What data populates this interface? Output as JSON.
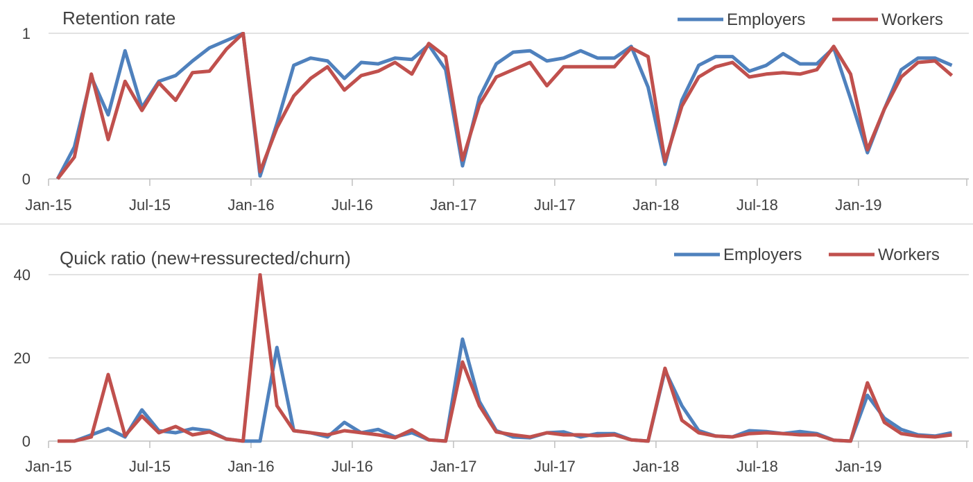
{
  "chart_data": [
    {
      "type": "line",
      "title": "Retention rate",
      "ylim": [
        0,
        1
      ],
      "yticks": [
        "0",
        "1"
      ],
      "xtick_labels": [
        "Jan-15",
        "Jul-15",
        "Jan-16",
        "Jul-16",
        "Jan-17",
        "Jul-17",
        "Jan-18",
        "Jul-18",
        "Jan-19"
      ],
      "legend_position": "top-right",
      "grid": true,
      "x": [
        "Jan-15",
        "Feb-15",
        "Mar-15",
        "Apr-15",
        "May-15",
        "Jun-15",
        "Jul-15",
        "Aug-15",
        "Sep-15",
        "Oct-15",
        "Nov-15",
        "Dec-15",
        "Jan-16",
        "Feb-16",
        "Mar-16",
        "Apr-16",
        "May-16",
        "Jun-16",
        "Jul-16",
        "Aug-16",
        "Sep-16",
        "Oct-16",
        "Nov-16",
        "Dec-16",
        "Jan-17",
        "Feb-17",
        "Mar-17",
        "Apr-17",
        "May-17",
        "Jun-17",
        "Jul-17",
        "Aug-17",
        "Sep-17",
        "Oct-17",
        "Nov-17",
        "Dec-17",
        "Jan-18",
        "Feb-18",
        "Mar-18",
        "Apr-18",
        "May-18",
        "Jun-18",
        "Jul-18",
        "Aug-18",
        "Sep-18",
        "Oct-18",
        "Nov-18",
        "Dec-18",
        "Jan-19",
        "Feb-19",
        "Mar-19",
        "Apr-19",
        "May-19",
        "Jun-19"
      ],
      "series": [
        {
          "name": "Employers",
          "color": "#4f81bd",
          "values": [
            0.0,
            0.22,
            0.7,
            0.44,
            0.88,
            0.49,
            0.67,
            0.71,
            0.81,
            0.9,
            0.95,
            1.0,
            0.02,
            0.38,
            0.78,
            0.83,
            0.81,
            0.69,
            0.8,
            0.79,
            0.83,
            0.82,
            0.92,
            0.75,
            0.09,
            0.56,
            0.79,
            0.87,
            0.88,
            0.81,
            0.83,
            0.88,
            0.83,
            0.83,
            0.91,
            0.63,
            0.1,
            0.54,
            0.78,
            0.84,
            0.84,
            0.74,
            0.78,
            0.86,
            0.79,
            0.79,
            0.9,
            0.55,
            0.18,
            0.48,
            0.75,
            0.83,
            0.83,
            0.78
          ]
        },
        {
          "name": "Workers",
          "color": "#c0504d",
          "values": [
            0.0,
            0.15,
            0.72,
            0.27,
            0.67,
            0.47,
            0.66,
            0.54,
            0.73,
            0.74,
            0.89,
            1.0,
            0.05,
            0.35,
            0.57,
            0.69,
            0.77,
            0.61,
            0.71,
            0.74,
            0.8,
            0.72,
            0.93,
            0.84,
            0.13,
            0.51,
            0.7,
            0.75,
            0.8,
            0.64,
            0.77,
            0.77,
            0.77,
            0.77,
            0.9,
            0.84,
            0.12,
            0.5,
            0.7,
            0.77,
            0.8,
            0.7,
            0.72,
            0.73,
            0.72,
            0.75,
            0.91,
            0.72,
            0.2,
            0.48,
            0.7,
            0.8,
            0.81,
            0.71
          ]
        }
      ]
    },
    {
      "type": "line",
      "title": "Quick ratio (new+ressurected/churn)",
      "ylim": [
        0,
        40
      ],
      "yticks": [
        "0",
        "20",
        "40"
      ],
      "xtick_labels": [
        "Jan-15",
        "Jul-15",
        "Jan-16",
        "Jul-16",
        "Jan-17",
        "Jul-17",
        "Jan-18",
        "Jul-18",
        "Jan-19"
      ],
      "legend_position": "top-right",
      "grid": true,
      "x": [
        "Jan-15",
        "Feb-15",
        "Mar-15",
        "Apr-15",
        "May-15",
        "Jun-15",
        "Jul-15",
        "Aug-15",
        "Sep-15",
        "Oct-15",
        "Nov-15",
        "Dec-15",
        "Jan-16",
        "Feb-16",
        "Mar-16",
        "Apr-16",
        "May-16",
        "Jun-16",
        "Jul-16",
        "Aug-16",
        "Sep-16",
        "Oct-16",
        "Nov-16",
        "Dec-16",
        "Jan-17",
        "Feb-17",
        "Mar-17",
        "Apr-17",
        "May-17",
        "Jun-17",
        "Jul-17",
        "Aug-17",
        "Sep-17",
        "Oct-17",
        "Nov-17",
        "Dec-17",
        "Jan-18",
        "Feb-18",
        "Mar-18",
        "Apr-18",
        "May-18",
        "Jun-18",
        "Jul-18",
        "Aug-18",
        "Sep-18",
        "Oct-18",
        "Nov-18",
        "Dec-18",
        "Jan-19",
        "Feb-19",
        "Mar-19",
        "Apr-19",
        "May-19",
        "Jun-19"
      ],
      "series": [
        {
          "name": "Employers",
          "color": "#4f81bd",
          "values": [
            0.0,
            0.0,
            1.5,
            3.0,
            1.0,
            7.5,
            2.5,
            2.0,
            3.0,
            2.5,
            0.5,
            0.0,
            0.0,
            22.5,
            2.5,
            2.0,
            1.0,
            4.5,
            2.0,
            2.8,
            1.0,
            2.0,
            0.3,
            0.0,
            24.5,
            9.5,
            2.5,
            1.0,
            0.8,
            2.0,
            2.2,
            1.0,
            1.8,
            1.8,
            0.3,
            0.0,
            17.0,
            8.5,
            2.5,
            1.2,
            1.0,
            2.5,
            2.3,
            1.8,
            2.3,
            1.8,
            0.2,
            0.0,
            11.0,
            5.5,
            2.8,
            1.5,
            1.2,
            2.0
          ]
        },
        {
          "name": "Workers",
          "color": "#c0504d",
          "values": [
            0.0,
            0.0,
            1.0,
            16.0,
            1.3,
            6.0,
            2.0,
            3.5,
            1.5,
            2.2,
            0.5,
            0.0,
            41.5,
            8.5,
            2.5,
            2.0,
            1.5,
            2.5,
            2.0,
            1.5,
            0.8,
            2.7,
            0.3,
            0.0,
            19.0,
            8.5,
            2.2,
            1.5,
            1.0,
            2.0,
            1.5,
            1.5,
            1.3,
            1.5,
            0.3,
            0.0,
            17.5,
            5.0,
            2.0,
            1.2,
            1.0,
            1.8,
            2.0,
            1.8,
            1.5,
            1.5,
            0.2,
            0.0,
            14.0,
            4.5,
            1.8,
            1.2,
            1.0,
            1.5
          ]
        }
      ]
    }
  ]
}
